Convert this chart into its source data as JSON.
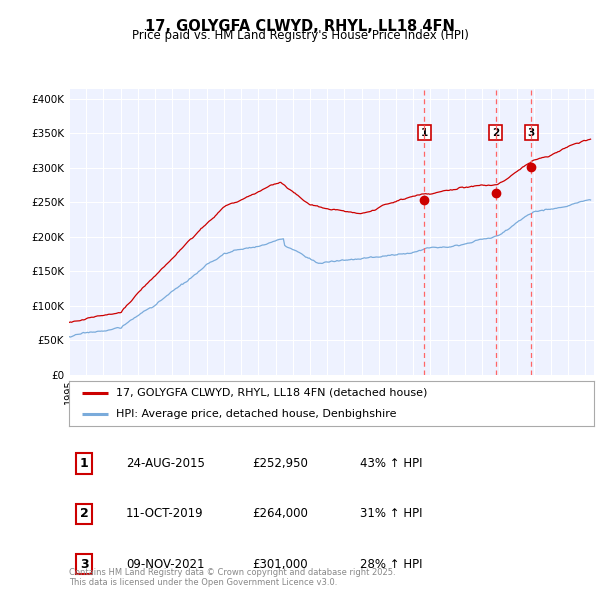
{
  "title": "17, GOLYGFA CLWYD, RHYL, LL18 4FN",
  "subtitle": "Price paid vs. HM Land Registry's House Price Index (HPI)",
  "ylabel_ticks": [
    "£0",
    "£50K",
    "£100K",
    "£150K",
    "£200K",
    "£250K",
    "£300K",
    "£350K",
    "£400K"
  ],
  "ytick_values": [
    0,
    50000,
    100000,
    150000,
    200000,
    250000,
    300000,
    350000,
    400000
  ],
  "ylim": [
    0,
    415000
  ],
  "xlim_start": 1995.0,
  "xlim_end": 2025.5,
  "vline_dates": [
    2015.65,
    2019.78,
    2021.86
  ],
  "vline_labels": [
    "1",
    "2",
    "3"
  ],
  "purchase_dates": [
    2015.65,
    2019.78,
    2021.86
  ],
  "purchase_prices": [
    252950,
    264000,
    301000
  ],
  "legend_red": "17, GOLYGFA CLWYD, RHYL, LL18 4FN (detached house)",
  "legend_blue": "HPI: Average price, detached house, Denbighshire",
  "table_data": [
    [
      "1",
      "24-AUG-2015",
      "£252,950",
      "43% ↑ HPI"
    ],
    [
      "2",
      "11-OCT-2019",
      "£264,000",
      "31% ↑ HPI"
    ],
    [
      "3",
      "09-NOV-2021",
      "£301,000",
      "28% ↑ HPI"
    ]
  ],
  "footnote": "Contains HM Land Registry data © Crown copyright and database right 2025.\nThis data is licensed under the Open Government Licence v3.0.",
  "background_color": "#ffffff",
  "plot_bg_color": "#eef2ff",
  "grid_color": "#ffffff",
  "red_color": "#cc0000",
  "blue_color": "#7aabdb",
  "vline_color": "#ff6666"
}
